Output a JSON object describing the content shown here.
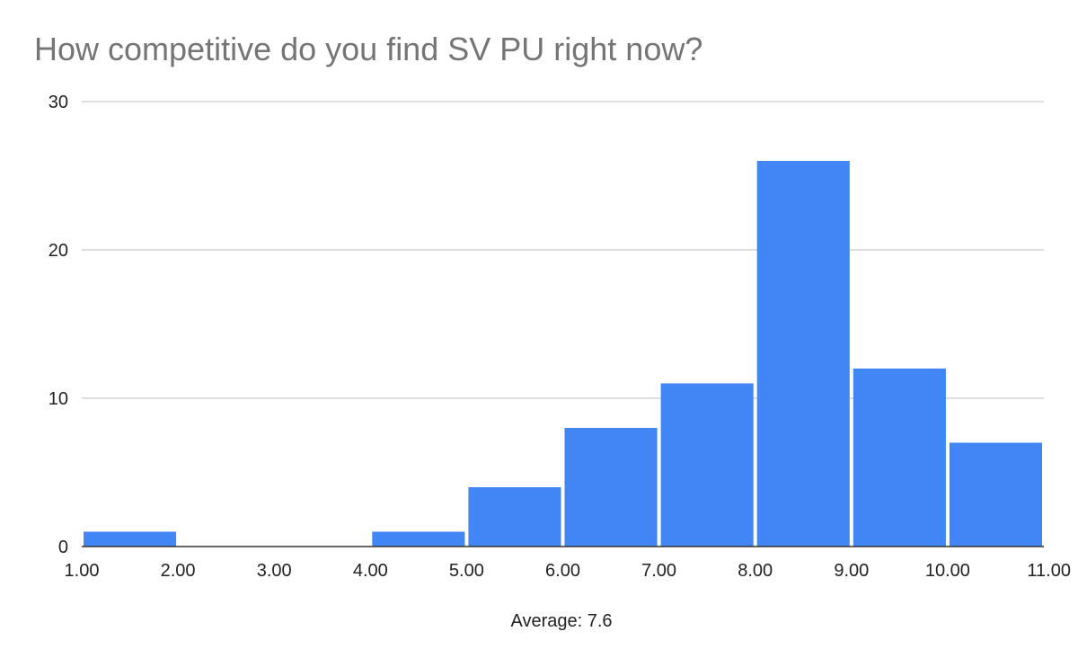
{
  "chart_data": {
    "type": "bar",
    "title": "How competitive do you find SV PU right now?",
    "xlabel": "Average: 7.6",
    "ylabel": "",
    "bins": [
      {
        "from": 1,
        "to": 2,
        "value": 1
      },
      {
        "from": 2,
        "to": 3,
        "value": 0
      },
      {
        "from": 3,
        "to": 4,
        "value": 0
      },
      {
        "from": 4,
        "to": 5,
        "value": 1
      },
      {
        "from": 5,
        "to": 6,
        "value": 4
      },
      {
        "from": 6,
        "to": 7,
        "value": 8
      },
      {
        "from": 7,
        "to": 8,
        "value": 11
      },
      {
        "from": 8,
        "to": 9,
        "value": 26
      },
      {
        "from": 9,
        "to": 10,
        "value": 12
      },
      {
        "from": 10,
        "to": 11,
        "value": 7
      }
    ],
    "x_ticks": [
      "1.00",
      "2.00",
      "3.00",
      "4.00",
      "5.00",
      "6.00",
      "7.00",
      "8.00",
      "9.00",
      "10.00",
      "11.00"
    ],
    "y_ticks": [
      "0",
      "10",
      "20",
      "30"
    ],
    "xlim": [
      1,
      11
    ],
    "ylim": [
      0,
      30
    ],
    "grid": true,
    "legend": "none",
    "bar_color": "#4285f4",
    "grid_color": "#cccccc",
    "baseline_color": "#333333"
  }
}
